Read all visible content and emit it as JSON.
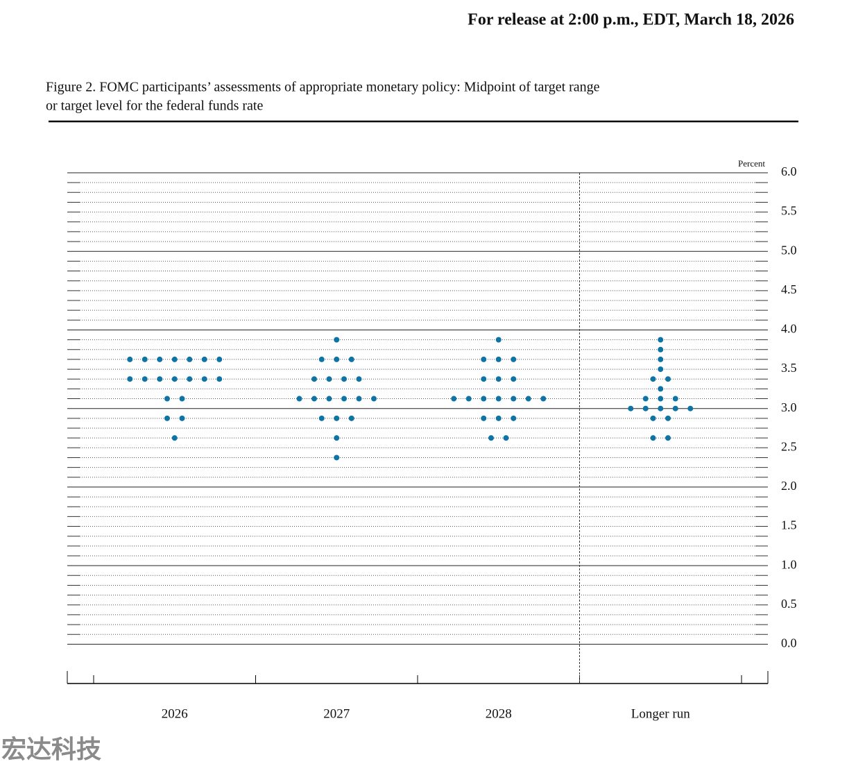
{
  "header": {
    "release": "For release at 2:00 p.m., EDT, March 18, 2026"
  },
  "chart_data": {
    "type": "dotplot",
    "title": "Figure 2. FOMC participants’ assessments of appropriate monetary policy: Midpoint of target range",
    "subtitle": "or target level for the federal funds rate",
    "y_label": "Percent",
    "categories": [
      "2026",
      "2027",
      "2028",
      "Longer run"
    ],
    "color": "#0e74a6",
    "columns": [
      {
        "levels": [
          3.625,
          3.375,
          3.125,
          2.875,
          2.625
        ],
        "counts": [
          7,
          7,
          2,
          2,
          1
        ]
      },
      {
        "levels": [
          3.875,
          3.625,
          3.375,
          3.125,
          2.875,
          2.625,
          2.375
        ],
        "counts": [
          1,
          3,
          4,
          6,
          3,
          1,
          1
        ]
      },
      {
        "levels": [
          3.875,
          3.625,
          3.375,
          3.125,
          2.875,
          2.625
        ],
        "counts": [
          1,
          3,
          3,
          7,
          3,
          2
        ]
      },
      {
        "levels": [
          3.875,
          3.75,
          3.625,
          3.5,
          3.375,
          3.25,
          3.125,
          3.0,
          2.875,
          2.625
        ],
        "counts": [
          1,
          1,
          1,
          1,
          2,
          1,
          3,
          5,
          2,
          2
        ]
      }
    ],
    "ylim": [
      -0.5,
      6
    ],
    "yticks": [
      {
        "value": 0,
        "label": "0.0"
      },
      0.5,
      {
        "value": 1,
        "label": "1.0"
      },
      1.5,
      {
        "value": 2,
        "label": "2.0"
      },
      2.5,
      {
        "value": 3,
        "label": "3.0"
      },
      3.5,
      {
        "value": 4,
        "label": "4.0"
      },
      4.5,
      {
        "value": 5,
        "label": "5.0"
      },
      5.5,
      {
        "value": 6,
        "label": "6.0"
      }
    ]
  },
  "watermark": "宏达科技"
}
